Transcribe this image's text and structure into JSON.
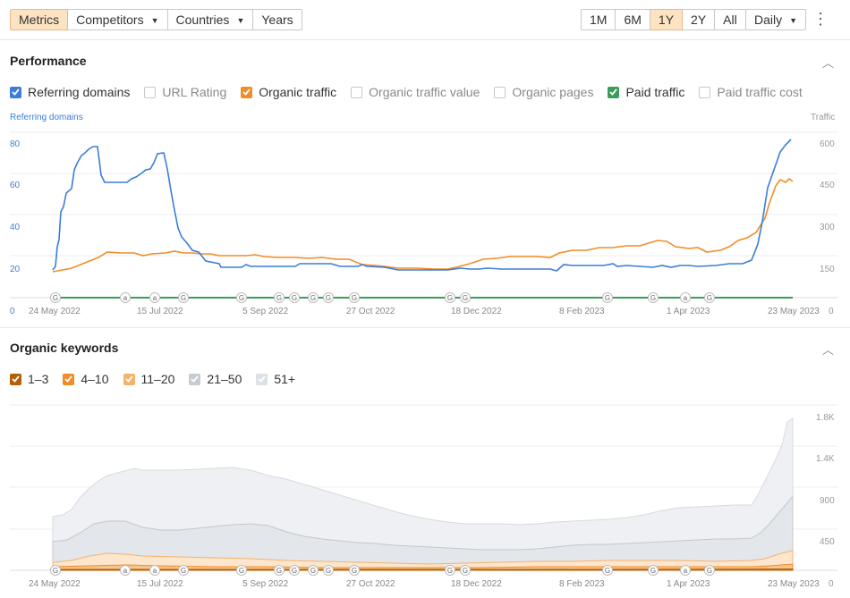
{
  "toolbar": {
    "tabs": [
      {
        "label": "Metrics",
        "active": true,
        "dropdown": false
      },
      {
        "label": "Competitors",
        "active": false,
        "dropdown": true
      },
      {
        "label": "Countries",
        "active": false,
        "dropdown": true
      },
      {
        "label": "Years",
        "active": false,
        "dropdown": false
      }
    ],
    "ranges": [
      {
        "label": "1M",
        "active": false
      },
      {
        "label": "6M",
        "active": false
      },
      {
        "label": "1Y",
        "active": true
      },
      {
        "label": "2Y",
        "active": false
      },
      {
        "label": "All",
        "active": false
      }
    ],
    "granularity": "Daily",
    "more_icon": "more-vertical-icon"
  },
  "performance": {
    "title": "Performance",
    "legend": [
      {
        "label": "Referring domains",
        "checked": true,
        "color": "#3b7dd8"
      },
      {
        "label": "URL Rating",
        "checked": false,
        "color": "#c9c9c9"
      },
      {
        "label": "Organic traffic",
        "checked": true,
        "color": "#f28c28"
      },
      {
        "label": "Organic traffic value",
        "checked": false,
        "color": "#c9c9c9"
      },
      {
        "label": "Organic pages",
        "checked": false,
        "color": "#c9c9c9"
      },
      {
        "label": "Paid traffic",
        "checked": true,
        "color": "#3a9d5d"
      },
      {
        "label": "Paid traffic cost",
        "checked": false,
        "color": "#c9c9c9"
      }
    ],
    "left_axis_title": "Referring domains",
    "right_axis_title": "Traffic",
    "left_ticks": [
      "80",
      "60",
      "40",
      "20",
      "0"
    ],
    "right_ticks": [
      "600",
      "450",
      "300",
      "150",
      "0"
    ],
    "x_ticks": [
      "24 May 2022",
      "15 Jul 2022",
      "5 Sep 2022",
      "27 Oct 2022",
      "18 Dec 2022",
      "8 Feb 2023",
      "1 Apr 2023",
      "23 May 2023"
    ],
    "markers": [
      "G",
      "a",
      "a",
      "G",
      "G",
      "G",
      "G",
      "G",
      "G",
      "G",
      "G",
      "G",
      "G",
      "a",
      "G"
    ]
  },
  "keywords": {
    "title": "Organic keywords",
    "legend": [
      {
        "label": "1–3",
        "checked": true,
        "color": "#b45f06"
      },
      {
        "label": "4–10",
        "checked": true,
        "color": "#f28c28"
      },
      {
        "label": "11–20",
        "checked": true,
        "color": "#f6b26b"
      },
      {
        "label": "21–50",
        "checked": true,
        "color": "#c7ccd3"
      },
      {
        "label": "51+",
        "checked": true,
        "color": "#dde1e7"
      }
    ],
    "right_ticks": [
      "1.8K",
      "1.4K",
      "900",
      "450",
      "0"
    ],
    "x_ticks": [
      "24 May 2022",
      "15 Jul 2022",
      "5 Sep 2022",
      "27 Oct 2022",
      "18 Dec 2022",
      "8 Feb 2023",
      "1 Apr 2023",
      "23 May 2023"
    ]
  },
  "colors": {
    "blue": "#3b7dd8",
    "orange": "#f28c28",
    "green": "#3a9d5d",
    "active_bg": "#fde3c1"
  }
}
